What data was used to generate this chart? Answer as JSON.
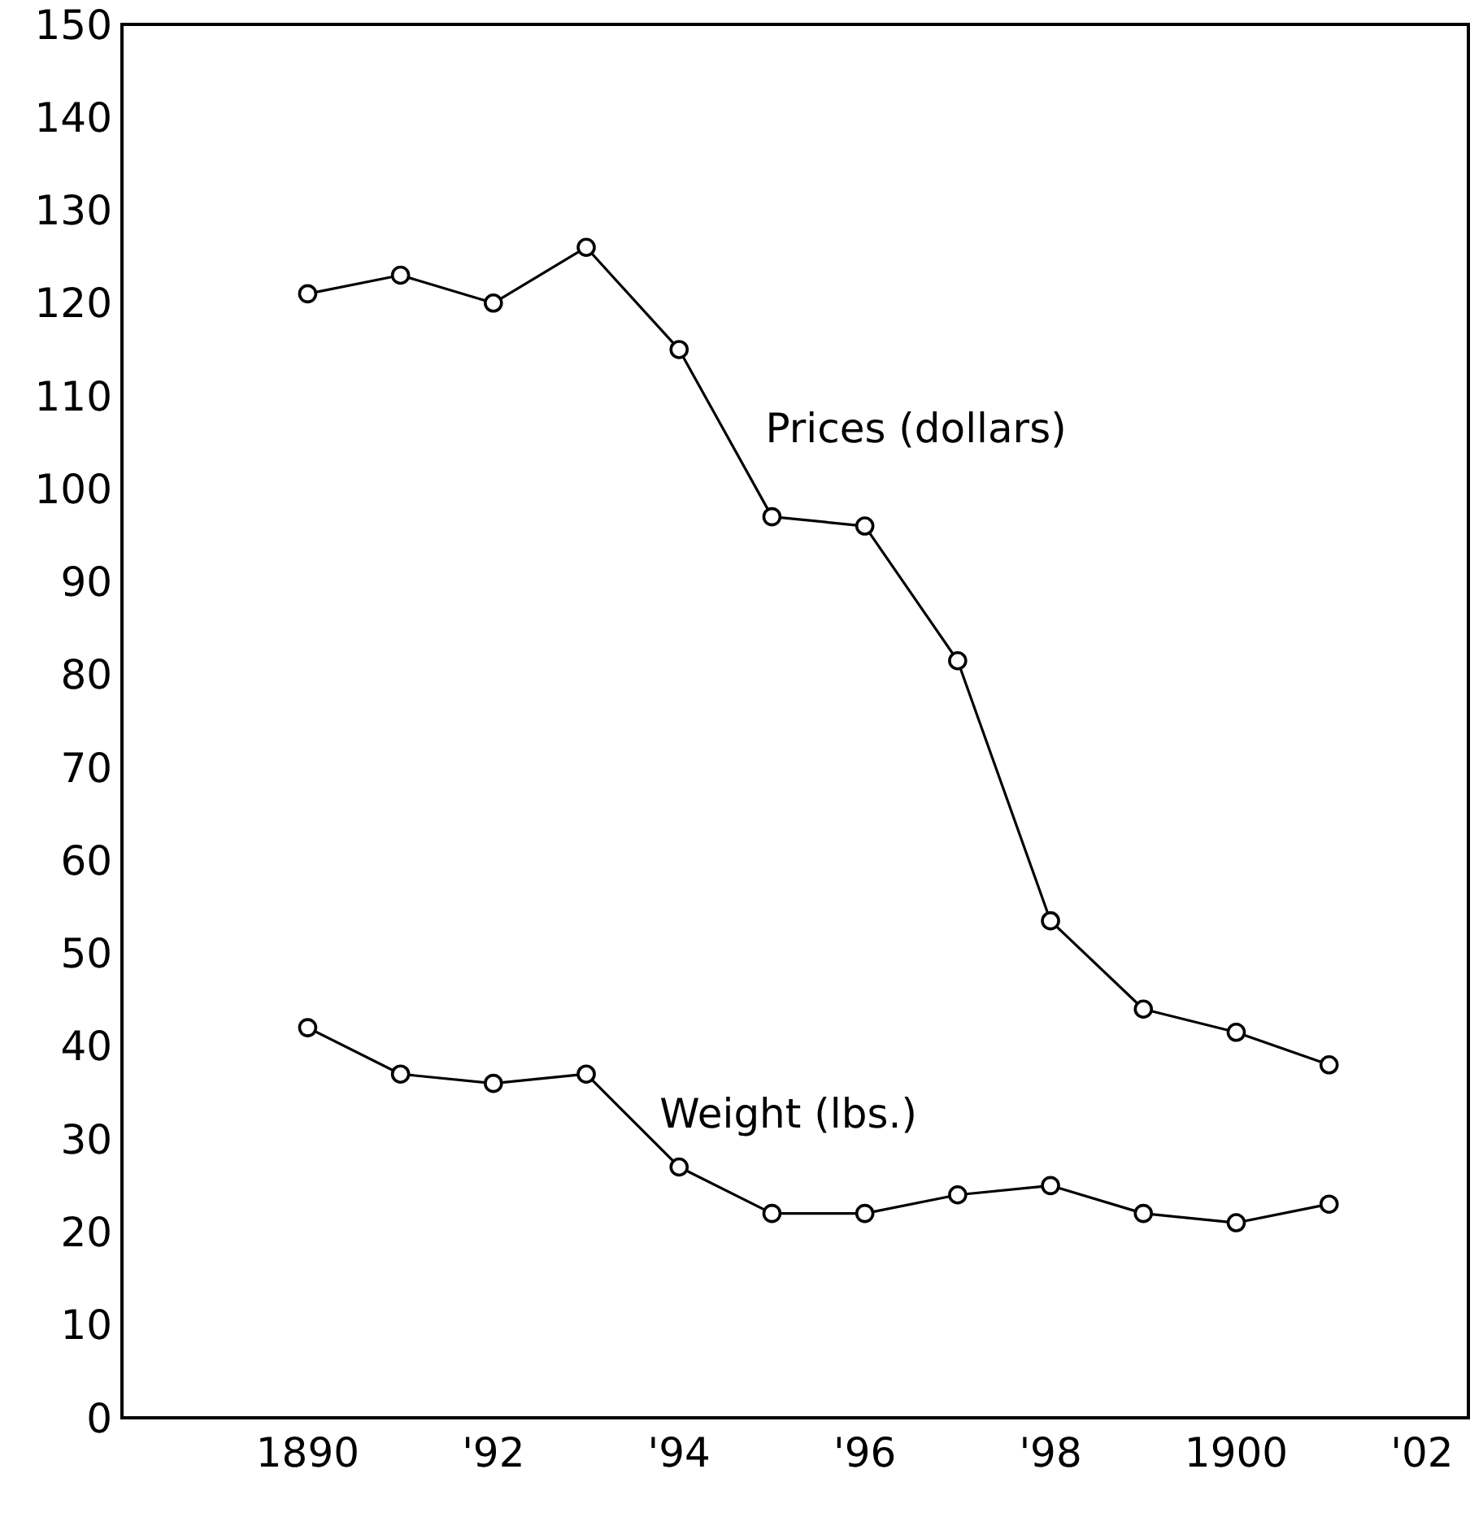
{
  "chart_data": {
    "type": "line",
    "x": [
      1890,
      1891,
      1892,
      1893,
      1894,
      1895,
      1896,
      1897,
      1898,
      1899,
      1900,
      1901
    ],
    "series": [
      {
        "name": "Prices (dollars)",
        "color": "#000000",
        "values": [
          121,
          123,
          120,
          126,
          115,
          97,
          96,
          81.5,
          53.5,
          44,
          41.5,
          38
        ]
      },
      {
        "name": "Weight (lbs.)",
        "color": "#000000",
        "values": [
          42,
          37,
          36,
          37,
          27,
          22,
          22,
          24,
          25,
          22,
          21,
          23
        ]
      }
    ],
    "xlim": [
      1888,
      1902.5
    ],
    "xticks": [
      1890,
      {
        "value": 1892,
        "label": "'92"
      },
      {
        "value": 1894,
        "label": "'94"
      },
      {
        "value": 1896,
        "label": "'96"
      },
      {
        "value": 1898,
        "label": "'98"
      },
      1900,
      {
        "value": 1902,
        "label": "'02"
      }
    ],
    "ylim": [
      0,
      150
    ],
    "yticks": [
      0,
      10,
      20,
      30,
      40,
      50,
      60,
      70,
      80,
      90,
      100,
      110,
      120,
      130,
      140,
      150
    ],
    "marker": "circle",
    "line_style": "solid"
  }
}
